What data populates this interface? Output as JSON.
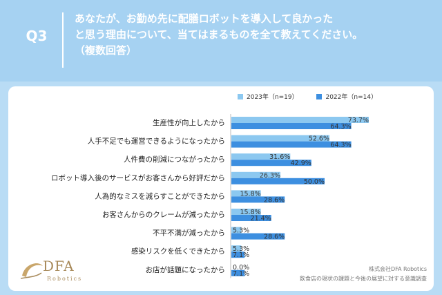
{
  "header": {
    "q_label": "Q3",
    "question_lines": [
      "あなたが、お勤め先に配膳ロボットを導入して良かった",
      "と思う理由について、当てはまるものを全て教えてください。",
      "（複数回答）"
    ]
  },
  "colors": {
    "header_bg": "#a6d2f2",
    "series_2023": "#8cc8f0",
    "series_2022": "#3d8fe0",
    "label_text": "#222222"
  },
  "legend": {
    "item_2023": "2023年（n=19）",
    "item_2022": "2022年（n=14）"
  },
  "chart_data": {
    "type": "bar",
    "orientation": "horizontal",
    "title": "あなたが、お勤め先に配膳ロボットを導入して良かったと思う理由について、当てはまるものを全て教えてください。（複数回答）",
    "categories": [
      "生産性が向上したから",
      "人手不足でも運営できるようになったから",
      "人件費の削減につながったから",
      "ロボット導入後のサービスがお客さんから好評だから",
      "人為的なミスを減らすことができたから",
      "お客さんからのクレームが減ったから",
      "不平不満が減ったから",
      "感染リスクを低くできたから",
      "お店が話題になったから"
    ],
    "series": [
      {
        "name": "2023年（n=19）",
        "values": [
          73.7,
          52.6,
          31.6,
          26.3,
          15.8,
          15.8,
          5.3,
          5.3,
          0.0
        ]
      },
      {
        "name": "2022年（n=14）",
        "values": [
          64.3,
          64.3,
          42.9,
          50.0,
          28.6,
          21.4,
          28.6,
          7.1,
          7.1
        ]
      }
    ],
    "value_labels": {
      "2023": [
        "73.7%",
        "52.6%",
        "31.6%",
        "26.3%",
        "15.8%",
        "15.8%",
        "5.3%",
        "5.3%",
        "0.0%"
      ],
      "2022": [
        "64.3%",
        "64.3%",
        "42.9%",
        "50.0%",
        "28.6%",
        "21.4%",
        "28.6%",
        "7.1%",
        "7.1%"
      ]
    },
    "unit": "%",
    "xlim": [
      0,
      100
    ],
    "grid": false,
    "legend_position": "top"
  },
  "logo": {
    "brand": "DFA",
    "sub": "Robotics"
  },
  "source": {
    "line1": "株式会社DFA Robotics",
    "line2": "飲食店の現状の課題と今後の展望に対する意識調査"
  }
}
